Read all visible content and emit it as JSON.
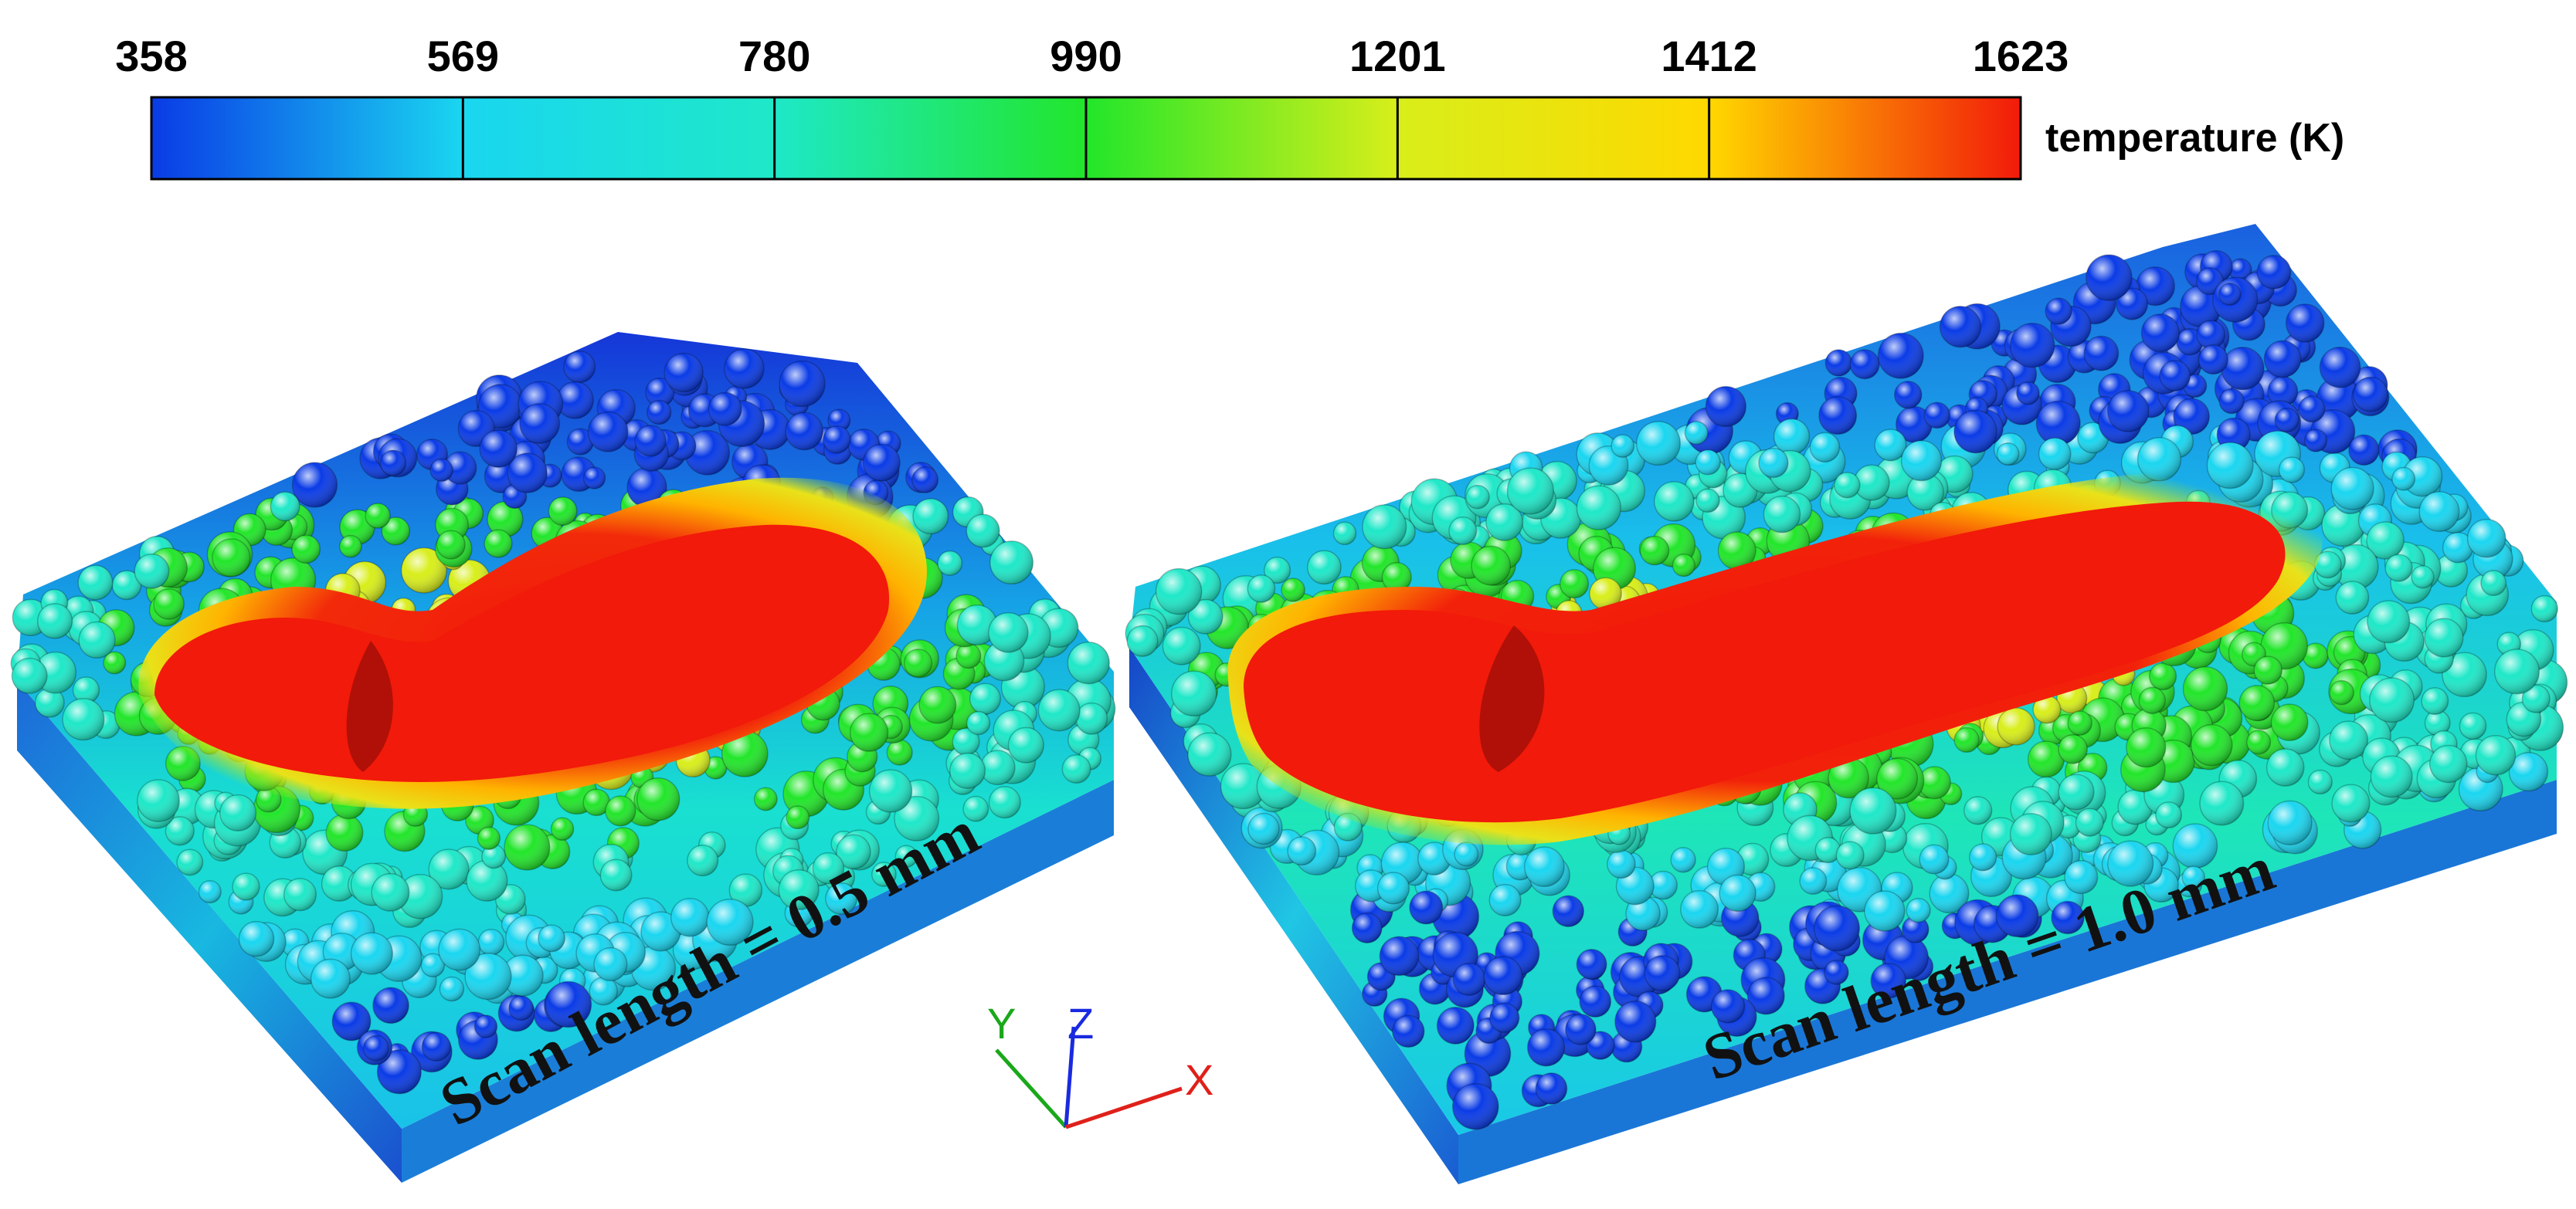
{
  "colorbar": {
    "ticks": [
      "358",
      "569",
      "780",
      "990",
      "1201",
      "1412",
      "1623"
    ],
    "title": "temperature (K)",
    "colors": [
      "#0a3be6",
      "#1ad6f0",
      "#1ee8c8",
      "#22e62a",
      "#d8ee1a",
      "#ffd800",
      "#f21a0a"
    ]
  },
  "panels": [
    {
      "label": "Scan length = 0.5 mm"
    },
    {
      "label": "Scan length = 1.0 mm"
    }
  ],
  "axes_triad": {
    "x": {
      "label": "X",
      "color": "#e0201a"
    },
    "y": {
      "label": "Y",
      "color": "#1aa81a"
    },
    "z": {
      "label": "Z",
      "color": "#1a2ae0"
    }
  }
}
